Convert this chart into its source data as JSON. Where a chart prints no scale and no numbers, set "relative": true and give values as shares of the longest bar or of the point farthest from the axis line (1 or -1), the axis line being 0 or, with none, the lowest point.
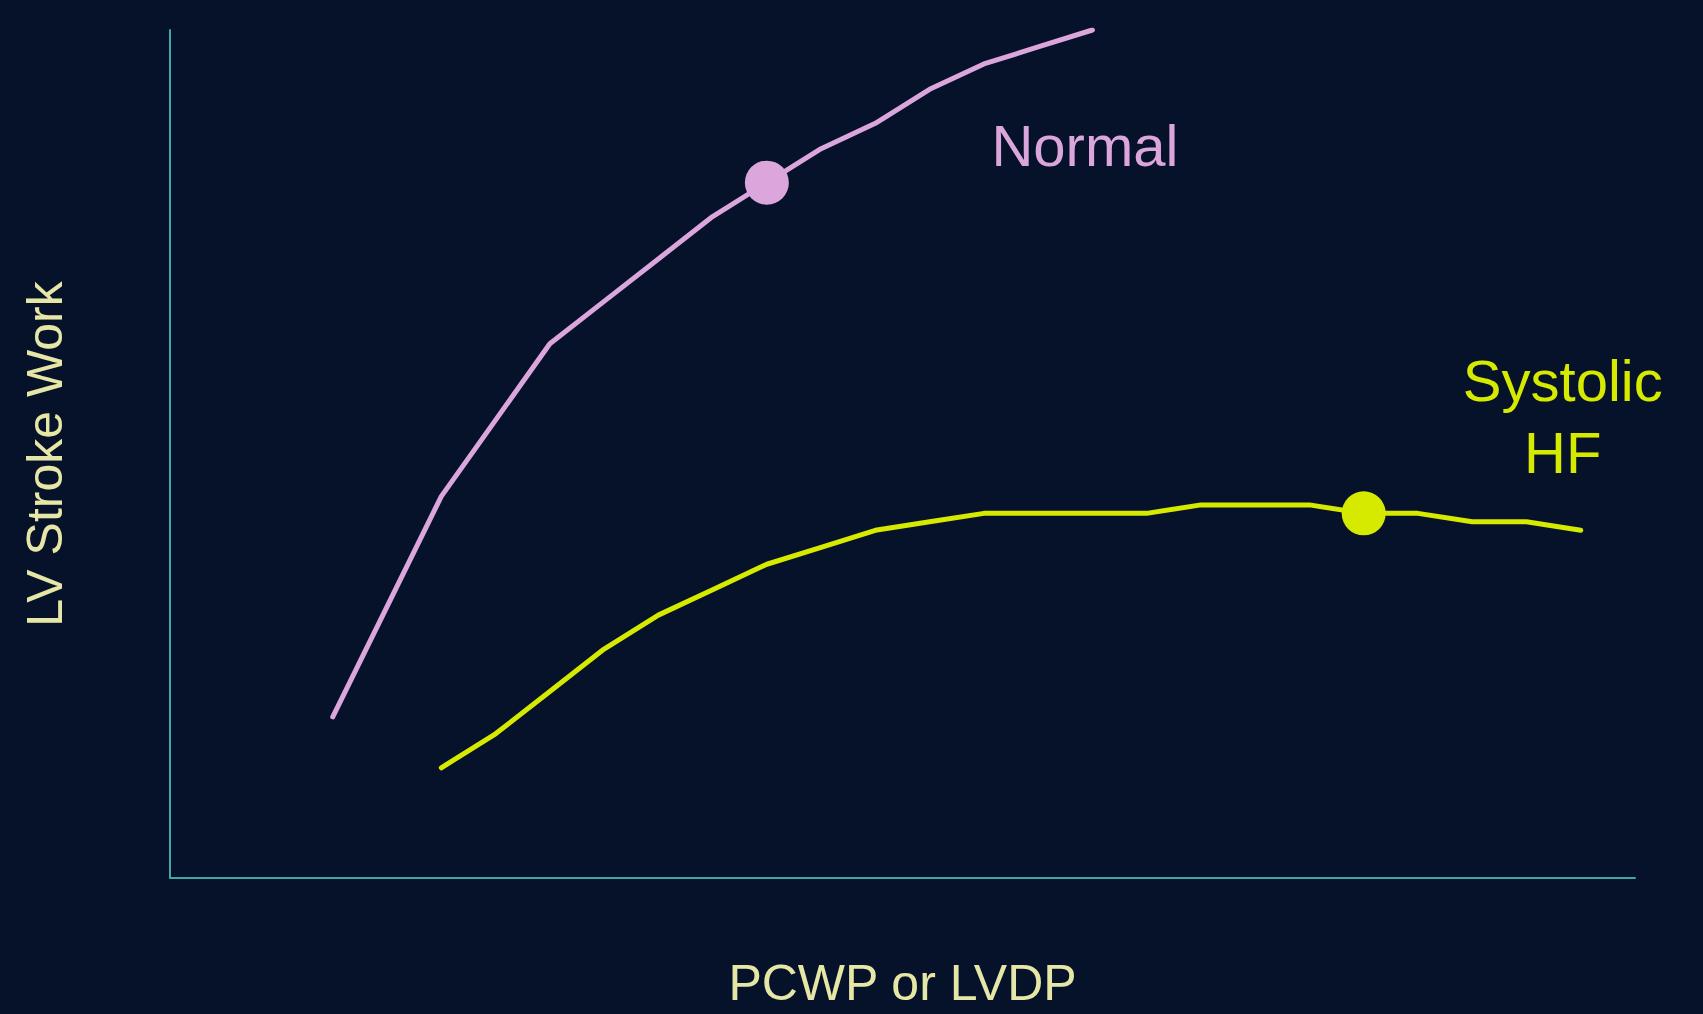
{
  "chart_data": {
    "type": "line",
    "xlabel": "PCWP or LVDP",
    "ylabel": "LV Stroke Work",
    "relative": true,
    "legend": false,
    "grid": false,
    "marker": "none",
    "categories": [
      null,
      null,
      null,
      null,
      null,
      null,
      null,
      null,
      null,
      null,
      null,
      null,
      null,
      null,
      null,
      null,
      null,
      null,
      null,
      null,
      null,
      null,
      null,
      null,
      null,
      null,
      null,
      null
    ],
    "series": [
      {
        "name": "Normal",
        "color": "#dba6dc",
        "values": [
          null,
          null,
          null,
          0.19,
          0.32,
          0.45,
          0.54,
          0.63,
          0.68,
          0.73,
          0.78,
          0.82,
          0.86,
          0.89,
          0.93,
          0.96,
          0.98,
          1.0,
          null,
          null,
          null,
          null,
          null,
          null,
          null,
          null,
          null,
          null
        ]
      },
      {
        "name": "Systolic HF",
        "color": "#d6ea00",
        "values": [
          null,
          null,
          null,
          null,
          null,
          0.13,
          0.17,
          0.22,
          0.27,
          0.31,
          0.34,
          0.37,
          0.39,
          0.41,
          0.42,
          0.43,
          0.43,
          0.43,
          0.43,
          0.44,
          0.44,
          0.44,
          0.43,
          0.43,
          0.42,
          0.42,
          0.41,
          null
        ]
      }
    ]
  }
}
